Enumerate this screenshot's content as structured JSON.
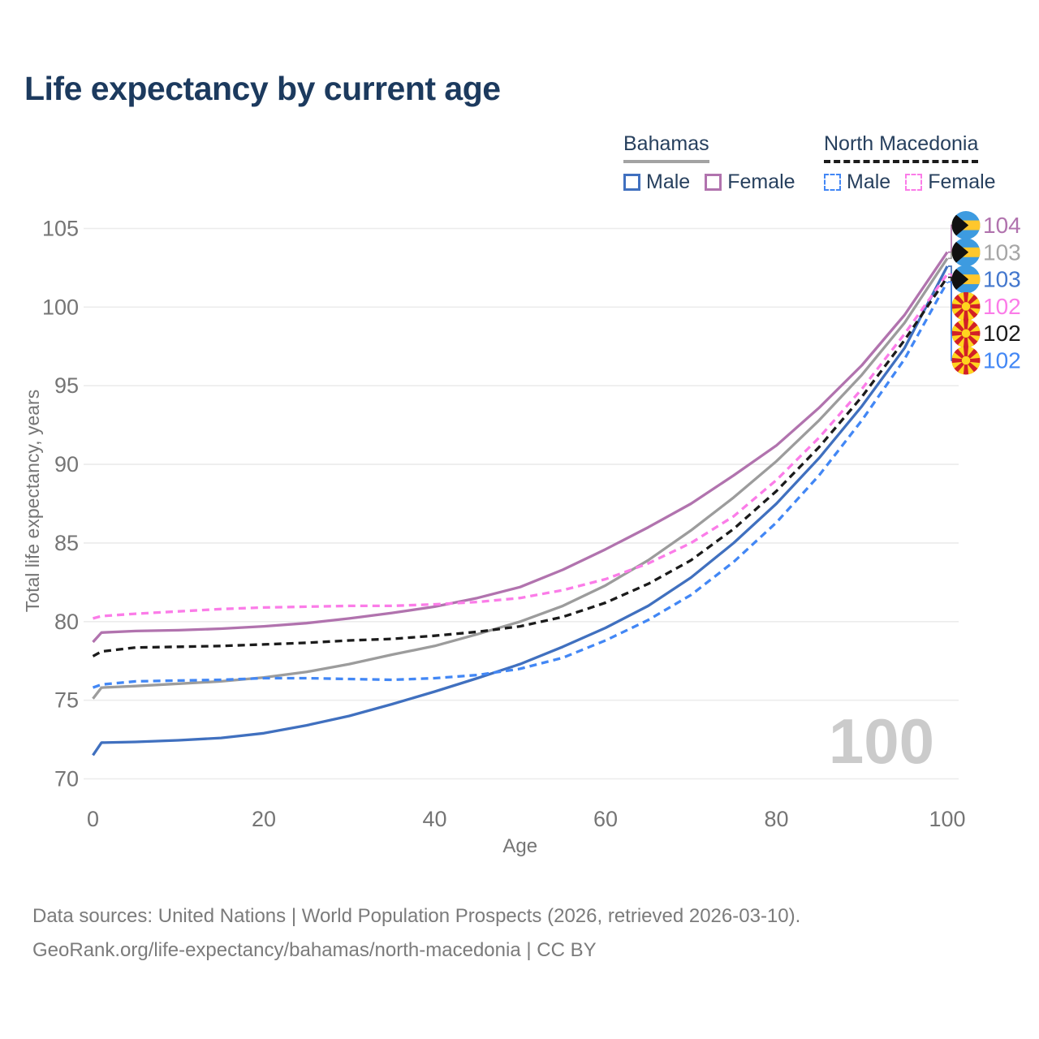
{
  "title": "Life expectancy by current age",
  "watermark": "100",
  "legend": {
    "groups": [
      {
        "label": "Bahamas",
        "line_style": "solid",
        "underline_color": "#a3a3a3",
        "items": [
          {
            "label": "Male",
            "color": "#4070bf"
          },
          {
            "label": "Female",
            "color": "#b173ae"
          }
        ]
      },
      {
        "label": "North Macedonia",
        "line_style": "dashed",
        "underline_color": "#1b1b1b",
        "items": [
          {
            "label": "Male",
            "color": "#4287f5"
          },
          {
            "label": "Female",
            "color": "#fb7ce8"
          }
        ]
      }
    ]
  },
  "footer": {
    "line1": "Data sources: United Nations | World Population Prospects (2026, retrieved 2026-03-10).",
    "line2": "GeoRank.org/life-expectancy/bahamas/north-macedonia | CC BY"
  },
  "chart_data": {
    "type": "line",
    "title": "Life expectancy by current age",
    "xlabel": "Age",
    "ylabel": "Total life expectancy, years",
    "xlim": [
      0,
      100
    ],
    "ylim": [
      70,
      105
    ],
    "x_ticks": [
      0,
      20,
      40,
      60,
      80,
      100
    ],
    "y_ticks": [
      70,
      75,
      80,
      85,
      90,
      95,
      100,
      105
    ],
    "grid": "horizontal",
    "legend_position": "top-right",
    "age_cursor_watermark": "100",
    "x": [
      0,
      1,
      5,
      10,
      15,
      20,
      25,
      30,
      35,
      40,
      45,
      50,
      55,
      60,
      65,
      70,
      75,
      80,
      85,
      90,
      95,
      100
    ],
    "series": [
      {
        "name": "Bahamas Female",
        "country": "Bahamas",
        "sex": "female",
        "color": "#b173ae",
        "dash": "solid",
        "flag": "bahamas",
        "end_label": "104",
        "end_label_color": "#b173ae",
        "values": [
          78.7,
          79.3,
          79.4,
          79.45,
          79.55,
          79.7,
          79.9,
          80.2,
          80.55,
          80.95,
          81.5,
          82.2,
          83.3,
          84.6,
          86.0,
          87.5,
          89.3,
          91.2,
          93.6,
          96.3,
          99.5,
          103.5
        ]
      },
      {
        "name": "Bahamas",
        "country": "Bahamas",
        "sex": "both",
        "color": "#9c9c9c",
        "dash": "solid",
        "flag": "bahamas",
        "end_label": "103",
        "end_label_color": "#a6a6a6",
        "values": [
          75.1,
          75.8,
          75.9,
          76.05,
          76.2,
          76.45,
          76.8,
          77.3,
          77.9,
          78.45,
          79.2,
          80.0,
          81.0,
          82.3,
          83.9,
          85.8,
          87.9,
          90.2,
          92.8,
          95.7,
          99.0,
          103.1
        ]
      },
      {
        "name": "Bahamas Male",
        "country": "Bahamas",
        "sex": "male",
        "color": "#4070bf",
        "dash": "solid",
        "flag": "bahamas",
        "end_label": "103",
        "end_label_color": "#4377cd",
        "values": [
          71.5,
          72.3,
          72.35,
          72.45,
          72.6,
          72.9,
          73.4,
          74.0,
          74.75,
          75.55,
          76.4,
          77.3,
          78.4,
          79.6,
          81.0,
          82.8,
          85.0,
          87.5,
          90.4,
          93.7,
          97.4,
          102.6
        ]
      },
      {
        "name": "North Macedonia Female",
        "country": "North Macedonia",
        "sex": "female",
        "color": "#fb7ce8",
        "dash": "dashed",
        "flag": "north-macedonia",
        "end_label": "102",
        "end_label_color": "#fb7ce8",
        "values": [
          80.2,
          80.35,
          80.5,
          80.65,
          80.8,
          80.9,
          80.95,
          81.0,
          81.0,
          81.1,
          81.25,
          81.5,
          82.0,
          82.7,
          83.7,
          85.0,
          86.7,
          89.0,
          91.7,
          94.8,
          98.3,
          102.1
        ]
      },
      {
        "name": "North Macedonia",
        "country": "North Macedonia",
        "sex": "both",
        "color": "#1b1b1b",
        "dash": "dashed",
        "flag": "north-macedonia",
        "end_label": "102",
        "end_label_color": "#1b1b1b",
        "values": [
          77.8,
          78.1,
          78.35,
          78.4,
          78.45,
          78.55,
          78.65,
          78.8,
          78.9,
          79.1,
          79.35,
          79.7,
          80.3,
          81.2,
          82.4,
          83.9,
          85.9,
          88.3,
          91.1,
          94.3,
          97.9,
          101.9
        ]
      },
      {
        "name": "North Macedonia Male",
        "country": "North Macedonia",
        "sex": "male",
        "color": "#4287f5",
        "dash": "dashed",
        "flag": "north-macedonia",
        "end_label": "102",
        "end_label_color": "#4287f5",
        "values": [
          75.8,
          76.0,
          76.2,
          76.25,
          76.3,
          76.4,
          76.4,
          76.35,
          76.3,
          76.4,
          76.6,
          77.0,
          77.7,
          78.8,
          80.1,
          81.7,
          83.8,
          86.3,
          89.3,
          92.8,
          96.7,
          101.6
        ]
      }
    ]
  }
}
